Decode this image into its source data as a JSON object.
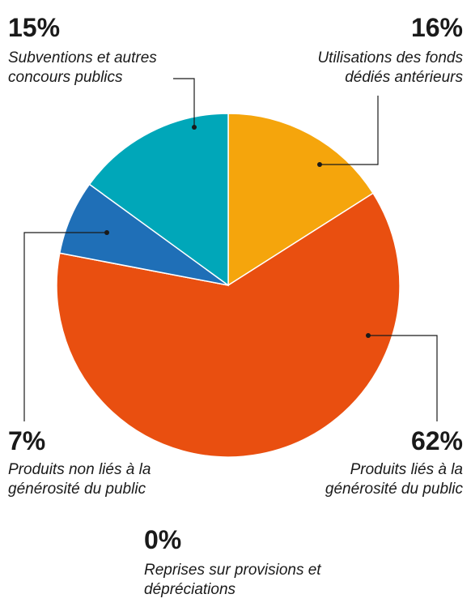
{
  "chart_data": {
    "type": "pie",
    "categories": [
      "Utilisations des fonds dédiés antérieurs",
      "Produits liés à la générosité du public",
      "Reprises sur provisions et dépréciations",
      "Produits non liés à la générosité du public",
      "Subventions et autres concours publics"
    ],
    "values": [
      16,
      62,
      0,
      7,
      15
    ],
    "value_labels": [
      "16%",
      "62%",
      "0%",
      "7%",
      "15%"
    ],
    "colors": [
      "#f5a50c",
      "#e94f10",
      "#8a8a8a",
      "#1f6fb7",
      "#00a7b9"
    ]
  }
}
